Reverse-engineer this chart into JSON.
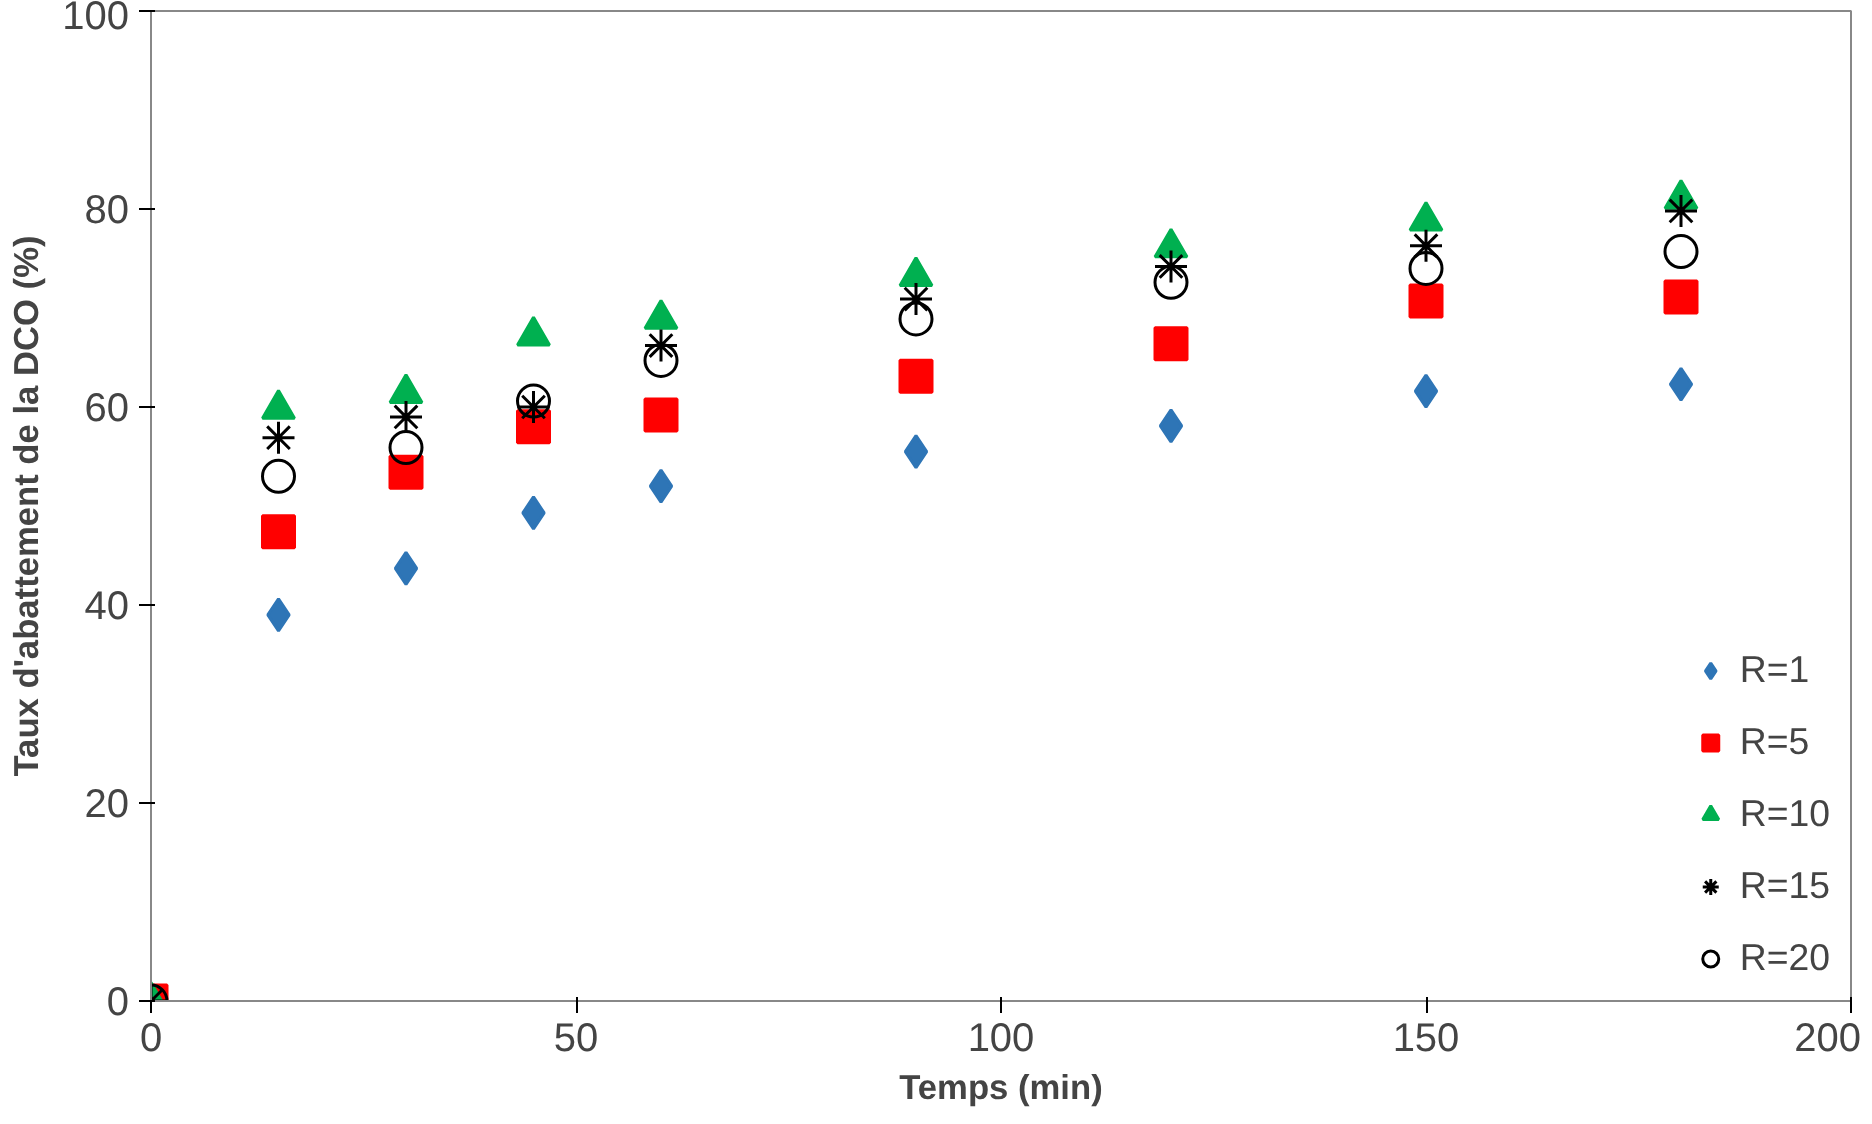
{
  "chart_data": {
    "type": "scatter",
    "xlabel": "Temps (min)",
    "ylabel": "Taux d'abattement de la DCO (%)",
    "x": [
      0,
      15,
      30,
      45,
      60,
      90,
      120,
      150,
      180
    ],
    "xlim": [
      0,
      200
    ],
    "xticks": [
      0,
      50,
      100,
      150,
      200
    ],
    "ylim": [
      0,
      100
    ],
    "yticks": [
      0,
      20,
      40,
      60,
      80,
      100
    ],
    "grid": false,
    "legend": "right",
    "series": [
      {
        "name": "R=1",
        "color": "#2e75b6",
        "marker": "diamond",
        "values": [
          null,
          39.0,
          43.7,
          49.3,
          52.0,
          55.5,
          58.1,
          61.6,
          62.3
        ]
      },
      {
        "name": "R=5",
        "color": "#ff0000",
        "marker": "square",
        "values": [
          0,
          47.4,
          53.4,
          58.0,
          59.2,
          63.1,
          66.4,
          70.7,
          71.1
        ]
      },
      {
        "name": "R=10",
        "color": "#00b050",
        "marker": "triangle",
        "values": [
          0,
          59.8,
          61.4,
          67.2,
          68.9,
          73.2,
          76.1,
          78.8,
          81.0
        ]
      },
      {
        "name": "R=15",
        "color": "#000000",
        "marker": "cross",
        "values": [
          0,
          56.9,
          59.0,
          60.0,
          66.2,
          70.9,
          74.2,
          76.3,
          79.8
        ]
      },
      {
        "name": "R=20",
        "color": "#000000",
        "marker": "circle",
        "values": [
          0,
          53.0,
          55.9,
          60.6,
          64.7,
          68.9,
          72.6,
          74.0,
          75.7
        ]
      }
    ]
  }
}
